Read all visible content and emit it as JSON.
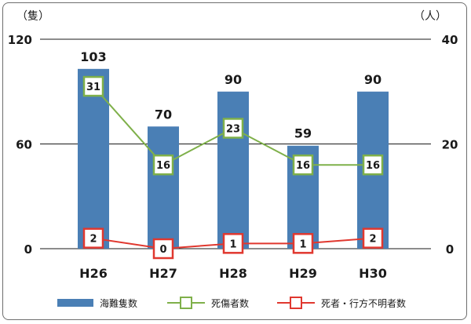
{
  "chart_data": {
    "type": "bar",
    "categories": [
      "H26",
      "H27",
      "H28",
      "H29",
      "H30"
    ],
    "left_axis": {
      "unit": "（隻）",
      "ylim": [
        0,
        120
      ],
      "ticks": [
        "0",
        "60",
        "120"
      ],
      "tick_values": [
        0,
        60,
        120
      ]
    },
    "right_axis": {
      "unit": "（人）",
      "ylim": [
        0,
        40
      ],
      "ticks": [
        "0",
        "20",
        "40"
      ],
      "tick_values": [
        0,
        20,
        40
      ]
    },
    "grid": true,
    "legend_position": "bottom",
    "series": [
      {
        "name": "海難隻数",
        "type": "bar",
        "axis": "left",
        "color": "#4a7fb5",
        "values": [
          103,
          70,
          90,
          59,
          90
        ],
        "labels": [
          "103",
          "70",
          "90",
          "59",
          "90"
        ]
      },
      {
        "name": "死傷者数",
        "type": "line",
        "axis": "right",
        "color": "#7fb04a",
        "values": [
          31,
          16,
          23,
          16,
          16
        ],
        "labels": [
          "31",
          "16",
          "23",
          "16",
          "16"
        ]
      },
      {
        "name": "死者・行方不明者数",
        "type": "line",
        "axis": "right",
        "color": "#e0382f",
        "values": [
          2,
          0,
          1,
          1,
          2
        ],
        "labels": [
          "2",
          "0",
          "1",
          "1",
          "2"
        ]
      }
    ]
  }
}
